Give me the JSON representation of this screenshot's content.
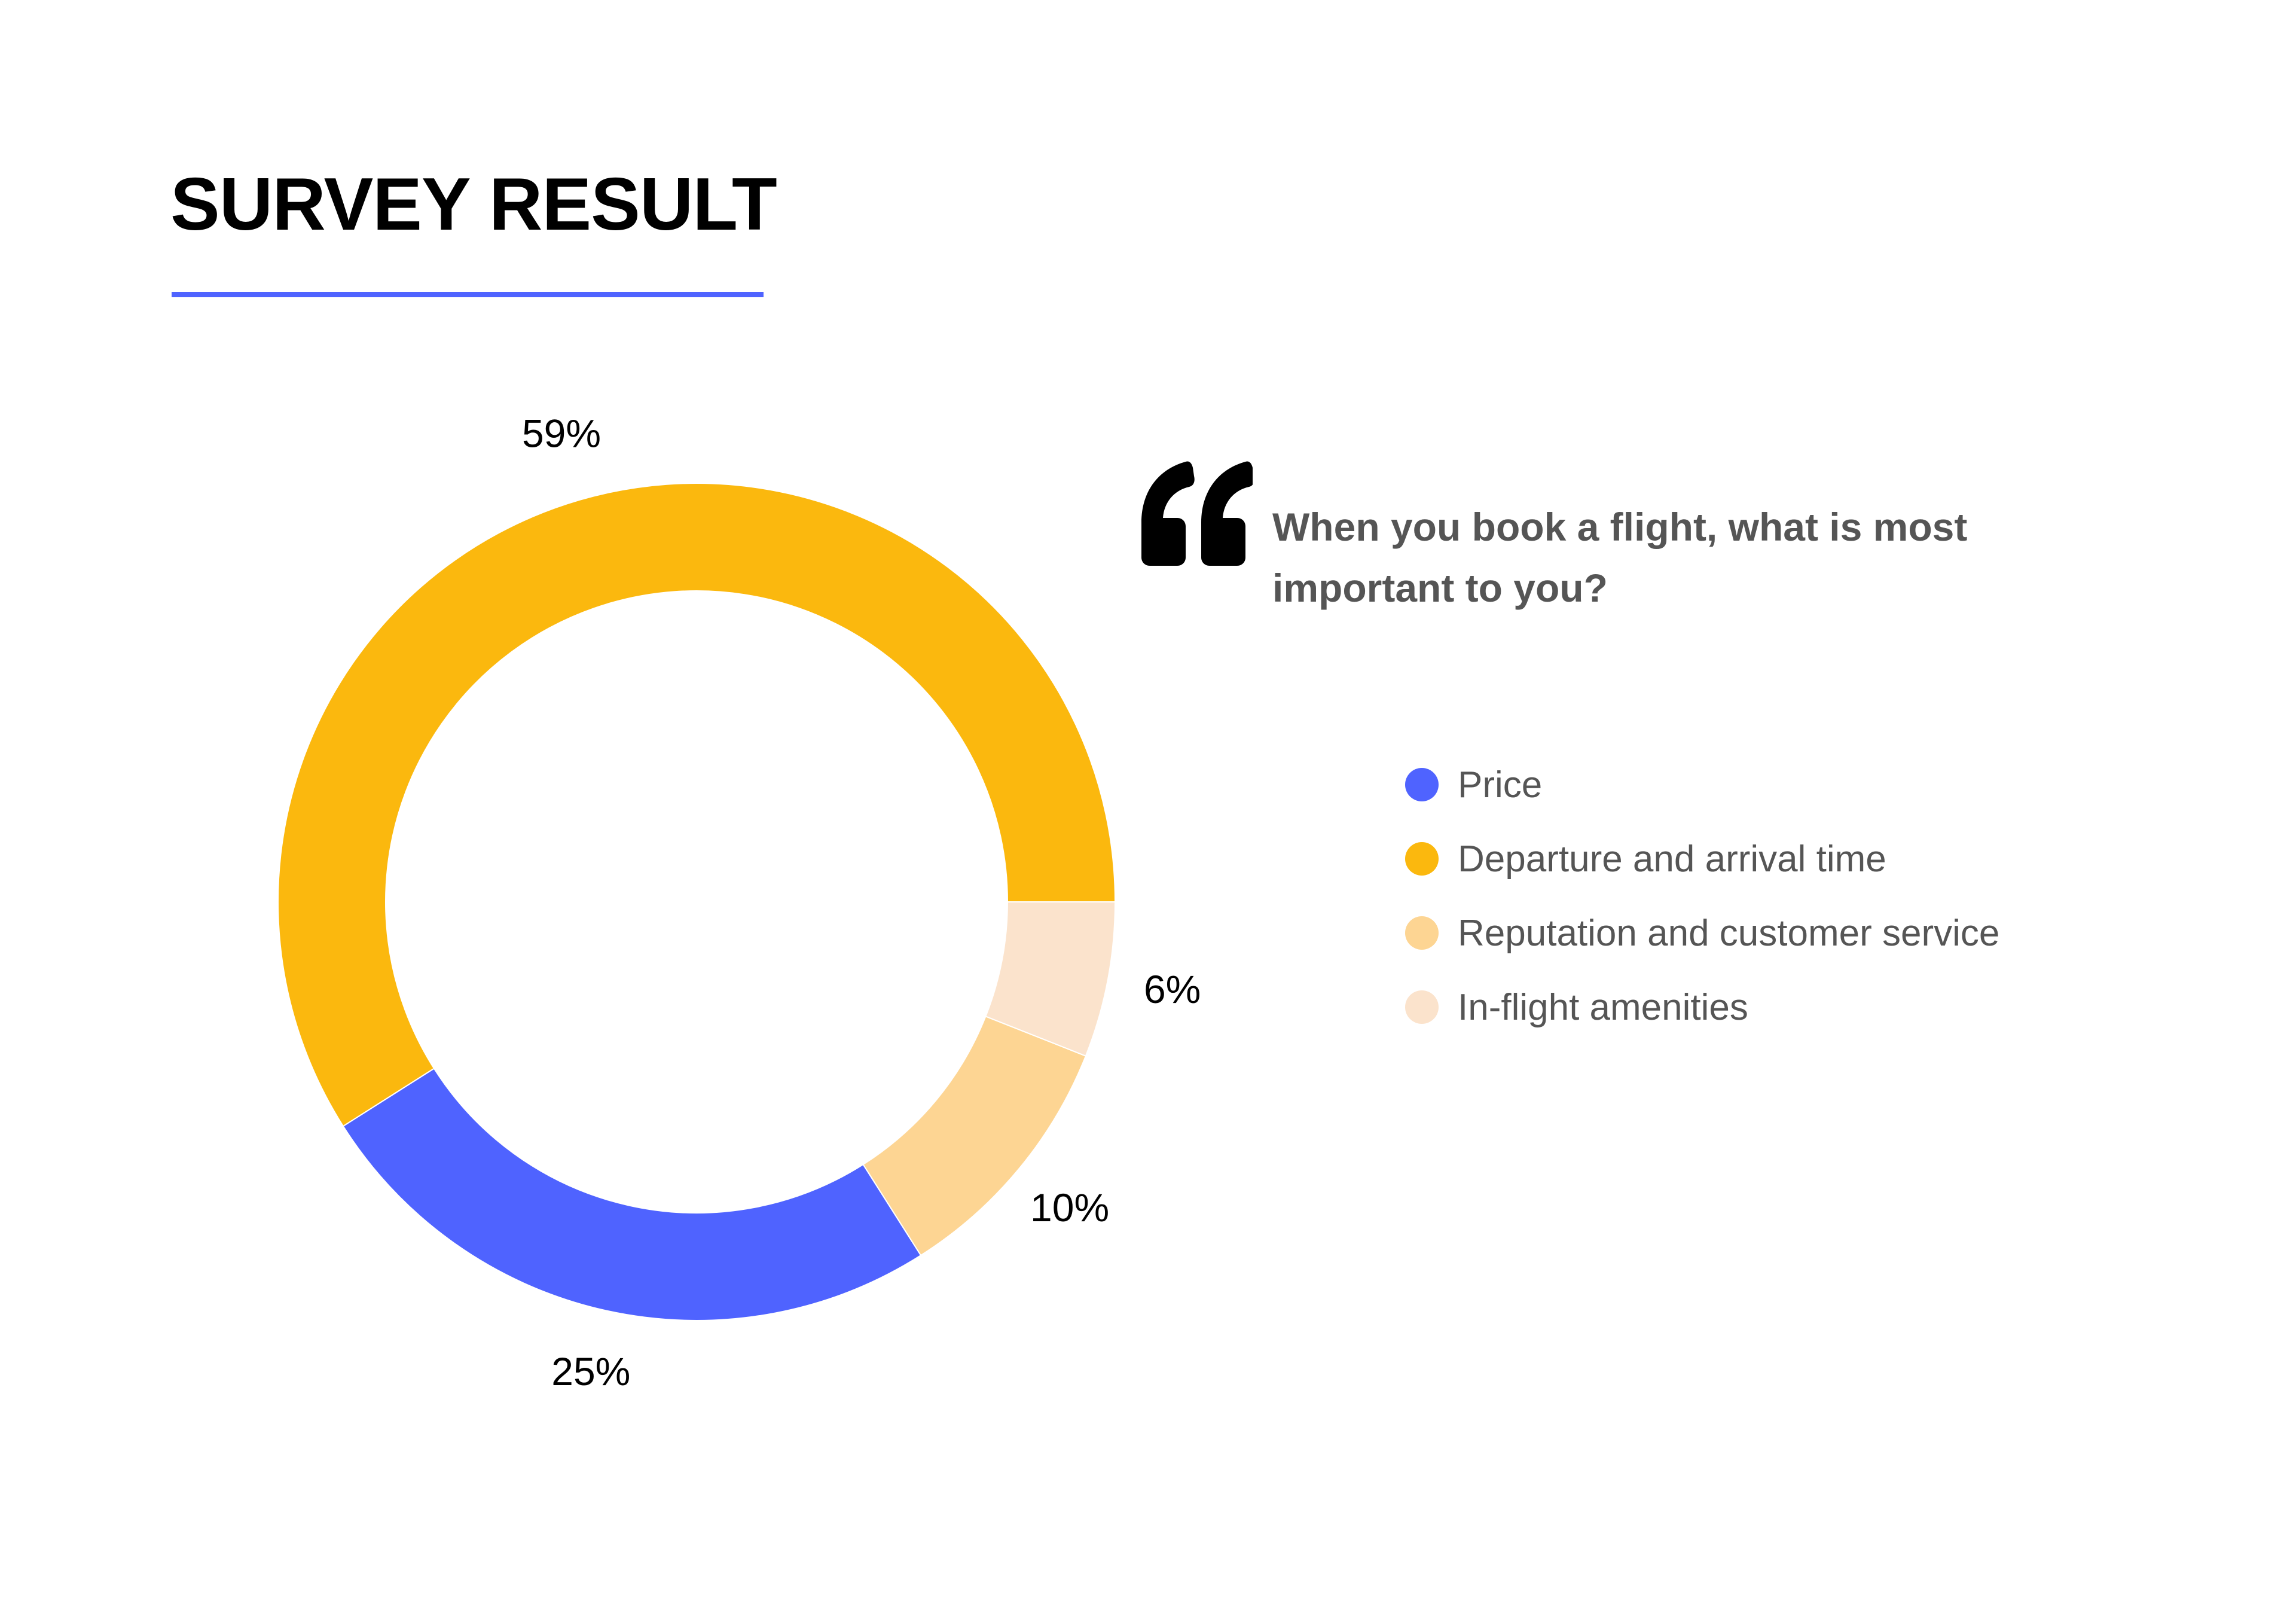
{
  "page": {
    "title": "SURVEY RESULT",
    "accent_color": "#4f63ff"
  },
  "question": {
    "icon": "quote-icon",
    "text": "When you book a flight, what is most important to you?"
  },
  "chart_data": {
    "type": "donut",
    "title": "SURVEY RESULT",
    "start_angle": "3 o'clock, counter-clockwise",
    "legend_position": "right",
    "categories": [
      "Price",
      "Departure and arrival time",
      "Reputation and customer service",
      "In-flight amenities"
    ],
    "values": [
      25,
      59,
      10,
      6
    ],
    "labels": [
      "25%",
      "59%",
      "10%",
      "6%"
    ],
    "colors": [
      "#4f63ff",
      "#fbb80e",
      "#fdd593",
      "#fbe3cc"
    ],
    "draw_order": [
      "Departure and arrival time",
      "Price",
      "Reputation and customer service",
      "In-flight amenities"
    ]
  }
}
